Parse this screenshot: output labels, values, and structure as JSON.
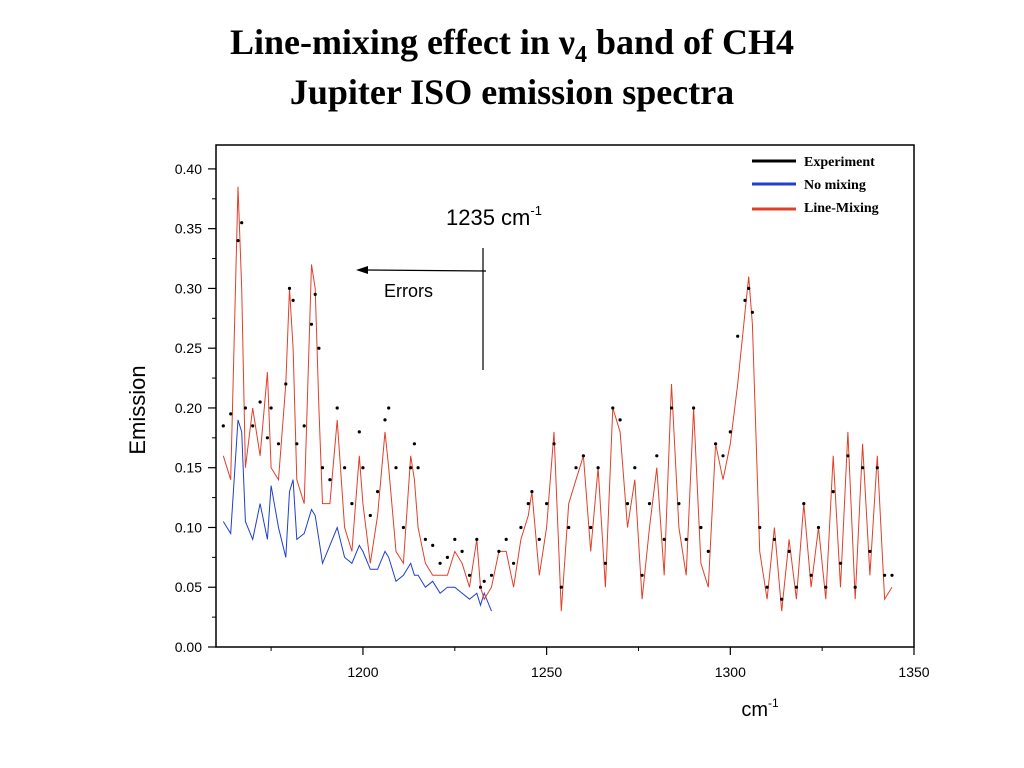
{
  "title": {
    "line1_prefix": "Line-mixing effect in ",
    "line1_nu": "ν",
    "line1_sub": "4",
    "line1_suffix": " band of CH4",
    "line2": "Jupiter ISO emission spectra"
  },
  "chart_data": {
    "type": "line",
    "ylabel": "Emission",
    "xlabel": "cm",
    "xlabel_sup": "-1",
    "xlim": [
      1160,
      1350
    ],
    "ylim": [
      0.0,
      0.42
    ],
    "xticks": [
      "1200",
      "1250",
      "1300",
      "1350"
    ],
    "yticks": [
      "0.00",
      "0.05",
      "0.10",
      "0.15",
      "0.20",
      "0.25",
      "0.30",
      "0.35",
      "0.40"
    ],
    "legend_position": "top-right",
    "colors": {
      "experiment": "#000000",
      "no_mixing": "#1f3fcf",
      "line_mixing": "#e0402a",
      "line_mixing_dark": "#b0195a"
    },
    "series": [
      {
        "name": "Experiment",
        "style": "dots",
        "x": [
          1162,
          1164,
          1166,
          1167,
          1168,
          1170,
          1172,
          1174,
          1175,
          1177,
          1179,
          1180,
          1181,
          1182,
          1184,
          1186,
          1187,
          1188,
          1189,
          1191,
          1193,
          1195,
          1197,
          1199,
          1200,
          1202,
          1204,
          1206,
          1207,
          1209,
          1211,
          1213,
          1214,
          1215,
          1217,
          1219,
          1221,
          1223,
          1225,
          1227,
          1229,
          1231,
          1232,
          1233,
          1235,
          1237,
          1239,
          1241,
          1243,
          1245,
          1246,
          1248,
          1250,
          1252,
          1254,
          1256,
          1258,
          1260,
          1262,
          1264,
          1266,
          1268,
          1270,
          1272,
          1274,
          1276,
          1278,
          1280,
          1282,
          1284,
          1286,
          1288,
          1290,
          1292,
          1294,
          1296,
          1298,
          1300,
          1302,
          1304,
          1305,
          1306,
          1308,
          1310,
          1312,
          1314,
          1316,
          1318,
          1320,
          1322,
          1324,
          1326,
          1328,
          1330,
          1332,
          1334,
          1336,
          1338,
          1340,
          1342,
          1344
        ],
        "y": [
          0.185,
          0.195,
          0.34,
          0.355,
          0.2,
          0.185,
          0.205,
          0.175,
          0.2,
          0.17,
          0.22,
          0.3,
          0.29,
          0.17,
          0.185,
          0.27,
          0.295,
          0.25,
          0.15,
          0.14,
          0.2,
          0.15,
          0.12,
          0.18,
          0.15,
          0.11,
          0.13,
          0.19,
          0.2,
          0.15,
          0.1,
          0.15,
          0.17,
          0.15,
          0.09,
          0.085,
          0.07,
          0.075,
          0.09,
          0.08,
          0.06,
          0.09,
          0.05,
          0.055,
          0.06,
          0.08,
          0.09,
          0.07,
          0.1,
          0.12,
          0.13,
          0.09,
          0.12,
          0.17,
          0.05,
          0.1,
          0.15,
          0.16,
          0.1,
          0.15,
          0.07,
          0.2,
          0.19,
          0.12,
          0.15,
          0.06,
          0.12,
          0.16,
          0.09,
          0.2,
          0.12,
          0.09,
          0.2,
          0.1,
          0.08,
          0.17,
          0.16,
          0.18,
          0.26,
          0.29,
          0.3,
          0.28,
          0.1,
          0.05,
          0.09,
          0.04,
          0.08,
          0.05,
          0.12,
          0.06,
          0.1,
          0.05,
          0.13,
          0.07,
          0.16,
          0.05,
          0.15,
          0.08,
          0.15,
          0.06,
          0.06
        ]
      },
      {
        "name": "No mixing",
        "style": "line",
        "x": [
          1162,
          1164,
          1166,
          1167,
          1168,
          1170,
          1172,
          1174,
          1175,
          1177,
          1179,
          1180,
          1181,
          1182,
          1184,
          1186,
          1187,
          1188,
          1189,
          1191,
          1193,
          1195,
          1197,
          1199,
          1200,
          1202,
          1204,
          1206,
          1207,
          1209,
          1211,
          1213,
          1214,
          1215,
          1217,
          1219,
          1221,
          1223,
          1225,
          1227,
          1229,
          1231,
          1232,
          1233,
          1235
        ],
        "y": [
          0.105,
          0.095,
          0.19,
          0.18,
          0.105,
          0.09,
          0.12,
          0.09,
          0.135,
          0.1,
          0.075,
          0.13,
          0.14,
          0.09,
          0.095,
          0.115,
          0.11,
          0.09,
          0.07,
          0.085,
          0.1,
          0.075,
          0.07,
          0.085,
          0.08,
          0.065,
          0.065,
          0.08,
          0.075,
          0.055,
          0.06,
          0.07,
          0.06,
          0.06,
          0.05,
          0.055,
          0.045,
          0.05,
          0.05,
          0.045,
          0.04,
          0.045,
          0.035,
          0.045,
          0.03
        ]
      },
      {
        "name": "Line-Mixing",
        "style": "line",
        "x": [
          1162,
          1164,
          1166,
          1167,
          1168,
          1170,
          1172,
          1174,
          1175,
          1177,
          1179,
          1180,
          1181,
          1182,
          1184,
          1186,
          1187,
          1188,
          1189,
          1191,
          1193,
          1195,
          1197,
          1199,
          1200,
          1202,
          1204,
          1206,
          1207,
          1209,
          1211,
          1213,
          1214,
          1215,
          1217,
          1219,
          1221,
          1223,
          1225,
          1227,
          1229,
          1231,
          1232,
          1233,
          1235,
          1237,
          1239,
          1241,
          1243,
          1245,
          1246,
          1248,
          1250,
          1252,
          1254,
          1256,
          1258,
          1260,
          1262,
          1264,
          1266,
          1268,
          1270,
          1272,
          1274,
          1276,
          1278,
          1280,
          1282,
          1284,
          1286,
          1288,
          1290,
          1292,
          1294,
          1296,
          1298,
          1300,
          1302,
          1304,
          1305,
          1306,
          1308,
          1310,
          1312,
          1314,
          1316,
          1318,
          1320,
          1322,
          1324,
          1326,
          1328,
          1330,
          1332,
          1334,
          1336,
          1338,
          1340,
          1342,
          1344
        ],
        "y": [
          0.16,
          0.14,
          0.385,
          0.3,
          0.15,
          0.2,
          0.16,
          0.23,
          0.15,
          0.14,
          0.22,
          0.3,
          0.25,
          0.14,
          0.12,
          0.32,
          0.3,
          0.2,
          0.12,
          0.12,
          0.19,
          0.1,
          0.08,
          0.16,
          0.12,
          0.07,
          0.11,
          0.18,
          0.15,
          0.08,
          0.07,
          0.16,
          0.14,
          0.1,
          0.07,
          0.06,
          0.06,
          0.06,
          0.08,
          0.07,
          0.05,
          0.09,
          0.05,
          0.04,
          0.05,
          0.08,
          0.08,
          0.05,
          0.09,
          0.11,
          0.13,
          0.06,
          0.1,
          0.18,
          0.03,
          0.12,
          0.14,
          0.16,
          0.08,
          0.15,
          0.05,
          0.2,
          0.18,
          0.1,
          0.14,
          0.04,
          0.1,
          0.15,
          0.06,
          0.22,
          0.1,
          0.06,
          0.2,
          0.07,
          0.05,
          0.17,
          0.14,
          0.17,
          0.22,
          0.28,
          0.31,
          0.27,
          0.08,
          0.04,
          0.1,
          0.03,
          0.09,
          0.04,
          0.12,
          0.05,
          0.1,
          0.04,
          0.16,
          0.05,
          0.18,
          0.04,
          0.17,
          0.06,
          0.16,
          0.04,
          0.05
        ]
      }
    ],
    "annotations": {
      "marker_label": "1235 cm",
      "marker_sup": "-1",
      "arrow_label": "Errors"
    }
  }
}
